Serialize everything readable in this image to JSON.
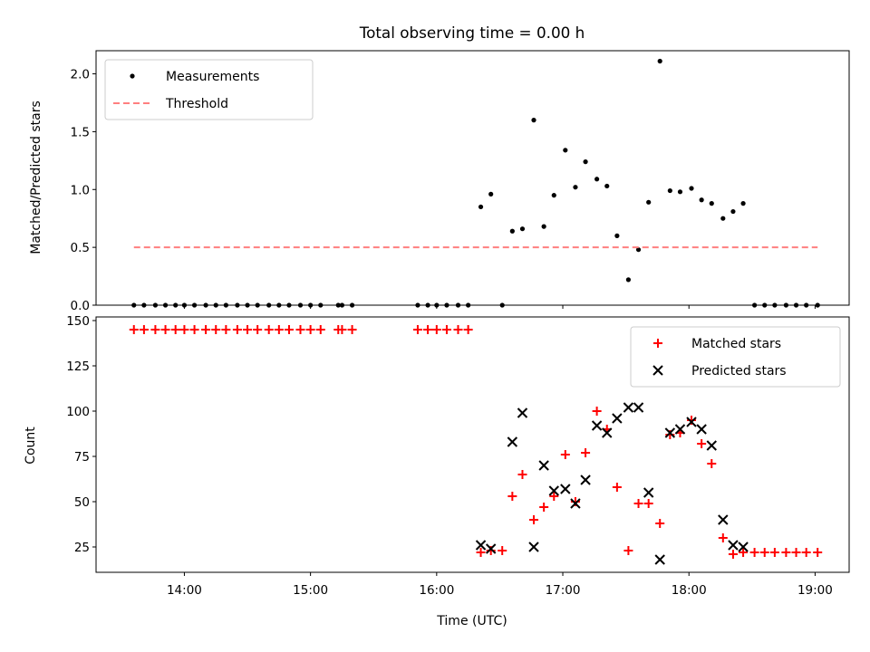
{
  "chart_data": {
    "title": "Total observing time = 0.00 h",
    "x_tick_labels": [
      "14:00",
      "15:00",
      "16:00",
      "17:00",
      "18:00",
      "19:00"
    ],
    "x_ticks_hours": [
      14,
      15,
      16,
      17,
      18,
      19
    ],
    "x_range_hours": [
      13.3,
      19.27
    ],
    "xlabel": "Time (UTC)",
    "charts": [
      {
        "type": "scatter",
        "ylabel": "Matched/Predicted stars",
        "ylim": [
          0,
          2.2
        ],
        "yticks": [
          0.0,
          0.5,
          1.0,
          1.5,
          2.0
        ],
        "ytick_labels": [
          "0.0",
          "0.5",
          "1.0",
          "1.5",
          "2.0"
        ],
        "legend_position": "upper left",
        "series": [
          {
            "name": "Measurements",
            "marker": "dot",
            "color": "#000000",
            "x": [
              13.6,
              13.68,
              13.77,
              13.85,
              13.93,
              14.0,
              14.08,
              14.17,
              14.25,
              14.33,
              14.42,
              14.5,
              14.58,
              14.67,
              14.75,
              14.83,
              14.92,
              15.0,
              15.08,
              15.22,
              15.25,
              15.33,
              15.85,
              15.93,
              16.0,
              16.08,
              16.17,
              16.25,
              16.35,
              16.43,
              16.52,
              16.6,
              16.68,
              16.77,
              16.85,
              16.93,
              17.02,
              17.1,
              17.18,
              17.27,
              17.35,
              17.43,
              17.52,
              17.6,
              17.68,
              17.77,
              17.85,
              17.93,
              18.02,
              18.1,
              18.18,
              18.27,
              18.35,
              18.43,
              18.52,
              18.6,
              18.68,
              18.77,
              18.85,
              18.93,
              19.02
            ],
            "y": [
              0,
              0,
              0,
              0,
              0,
              0,
              0,
              0,
              0,
              0,
              0,
              0,
              0,
              0,
              0,
              0,
              0,
              0,
              0,
              0,
              0,
              0,
              0,
              0,
              0,
              0,
              0,
              0,
              0.85,
              0.96,
              0,
              0.64,
              0.66,
              1.6,
              0.68,
              0.95,
              1.34,
              1.02,
              1.24,
              1.09,
              1.03,
              0.6,
              0.22,
              0.48,
              0.89,
              2.11,
              0.99,
              0.98,
              1.01,
              0.91,
              0.88,
              0.75,
              0.81,
              0.88,
              0,
              0,
              0,
              0,
              0,
              0,
              0
            ]
          },
          {
            "name": "Threshold",
            "type": "line",
            "style": "dashed",
            "color": "#ff7f7f",
            "x": [
              13.6,
              19.02
            ],
            "y": [
              0.5,
              0.5
            ]
          }
        ]
      },
      {
        "type": "scatter",
        "ylabel": "Count",
        "ylim": [
          11,
          152
        ],
        "yticks": [
          25,
          50,
          75,
          100,
          125,
          150
        ],
        "ytick_labels": [
          "25",
          "50",
          "75",
          "100",
          "125",
          "150"
        ],
        "legend_position": "upper right",
        "series": [
          {
            "name": "Matched stars",
            "marker": "plus",
            "color": "#ff0000",
            "x": [
              13.6,
              13.68,
              13.77,
              13.85,
              13.93,
              14.0,
              14.08,
              14.17,
              14.25,
              14.33,
              14.42,
              14.5,
              14.58,
              14.67,
              14.75,
              14.83,
              14.92,
              15.0,
              15.08,
              15.22,
              15.25,
              15.33,
              15.85,
              15.93,
              16.0,
              16.08,
              16.17,
              16.25,
              16.35,
              16.43,
              16.52,
              16.6,
              16.68,
              16.77,
              16.85,
              16.93,
              17.02,
              17.1,
              17.18,
              17.27,
              17.35,
              17.43,
              17.52,
              17.6,
              17.68,
              17.77,
              17.85,
              17.93,
              18.02,
              18.1,
              18.18,
              18.27,
              18.35,
              18.43,
              18.52,
              18.6,
              18.68,
              18.77,
              18.85,
              18.93,
              19.02
            ],
            "y": [
              145,
              145,
              145,
              145,
              145,
              145,
              145,
              145,
              145,
              145,
              145,
              145,
              145,
              145,
              145,
              145,
              145,
              145,
              145,
              145,
              145,
              145,
              145,
              145,
              145,
              145,
              145,
              145,
              22,
              23,
              23,
              53,
              65,
              40,
              47,
              53,
              76,
              50,
              77,
              100,
              90,
              58,
              23,
              49,
              49,
              38,
              87,
              88,
              95,
              82,
              71,
              30,
              21,
              22,
              22,
              22,
              22,
              22,
              22,
              22,
              22
            ]
          },
          {
            "name": "Predicted stars",
            "marker": "x",
            "color": "#000000",
            "x": [
              16.35,
              16.43,
              16.6,
              16.68,
              16.77,
              16.85,
              16.93,
              17.02,
              17.1,
              17.18,
              17.27,
              17.35,
              17.43,
              17.52,
              17.6,
              17.68,
              17.77,
              17.85,
              17.93,
              18.02,
              18.1,
              18.18,
              18.27,
              18.35,
              18.43
            ],
            "y": [
              26,
              24,
              83,
              99,
              25,
              70,
              56,
              57,
              49,
              62,
              92,
              88,
              96,
              102,
              102,
              55,
              18,
              88,
              90,
              94,
              90,
              81,
              40,
              26,
              25
            ]
          }
        ]
      }
    ]
  }
}
